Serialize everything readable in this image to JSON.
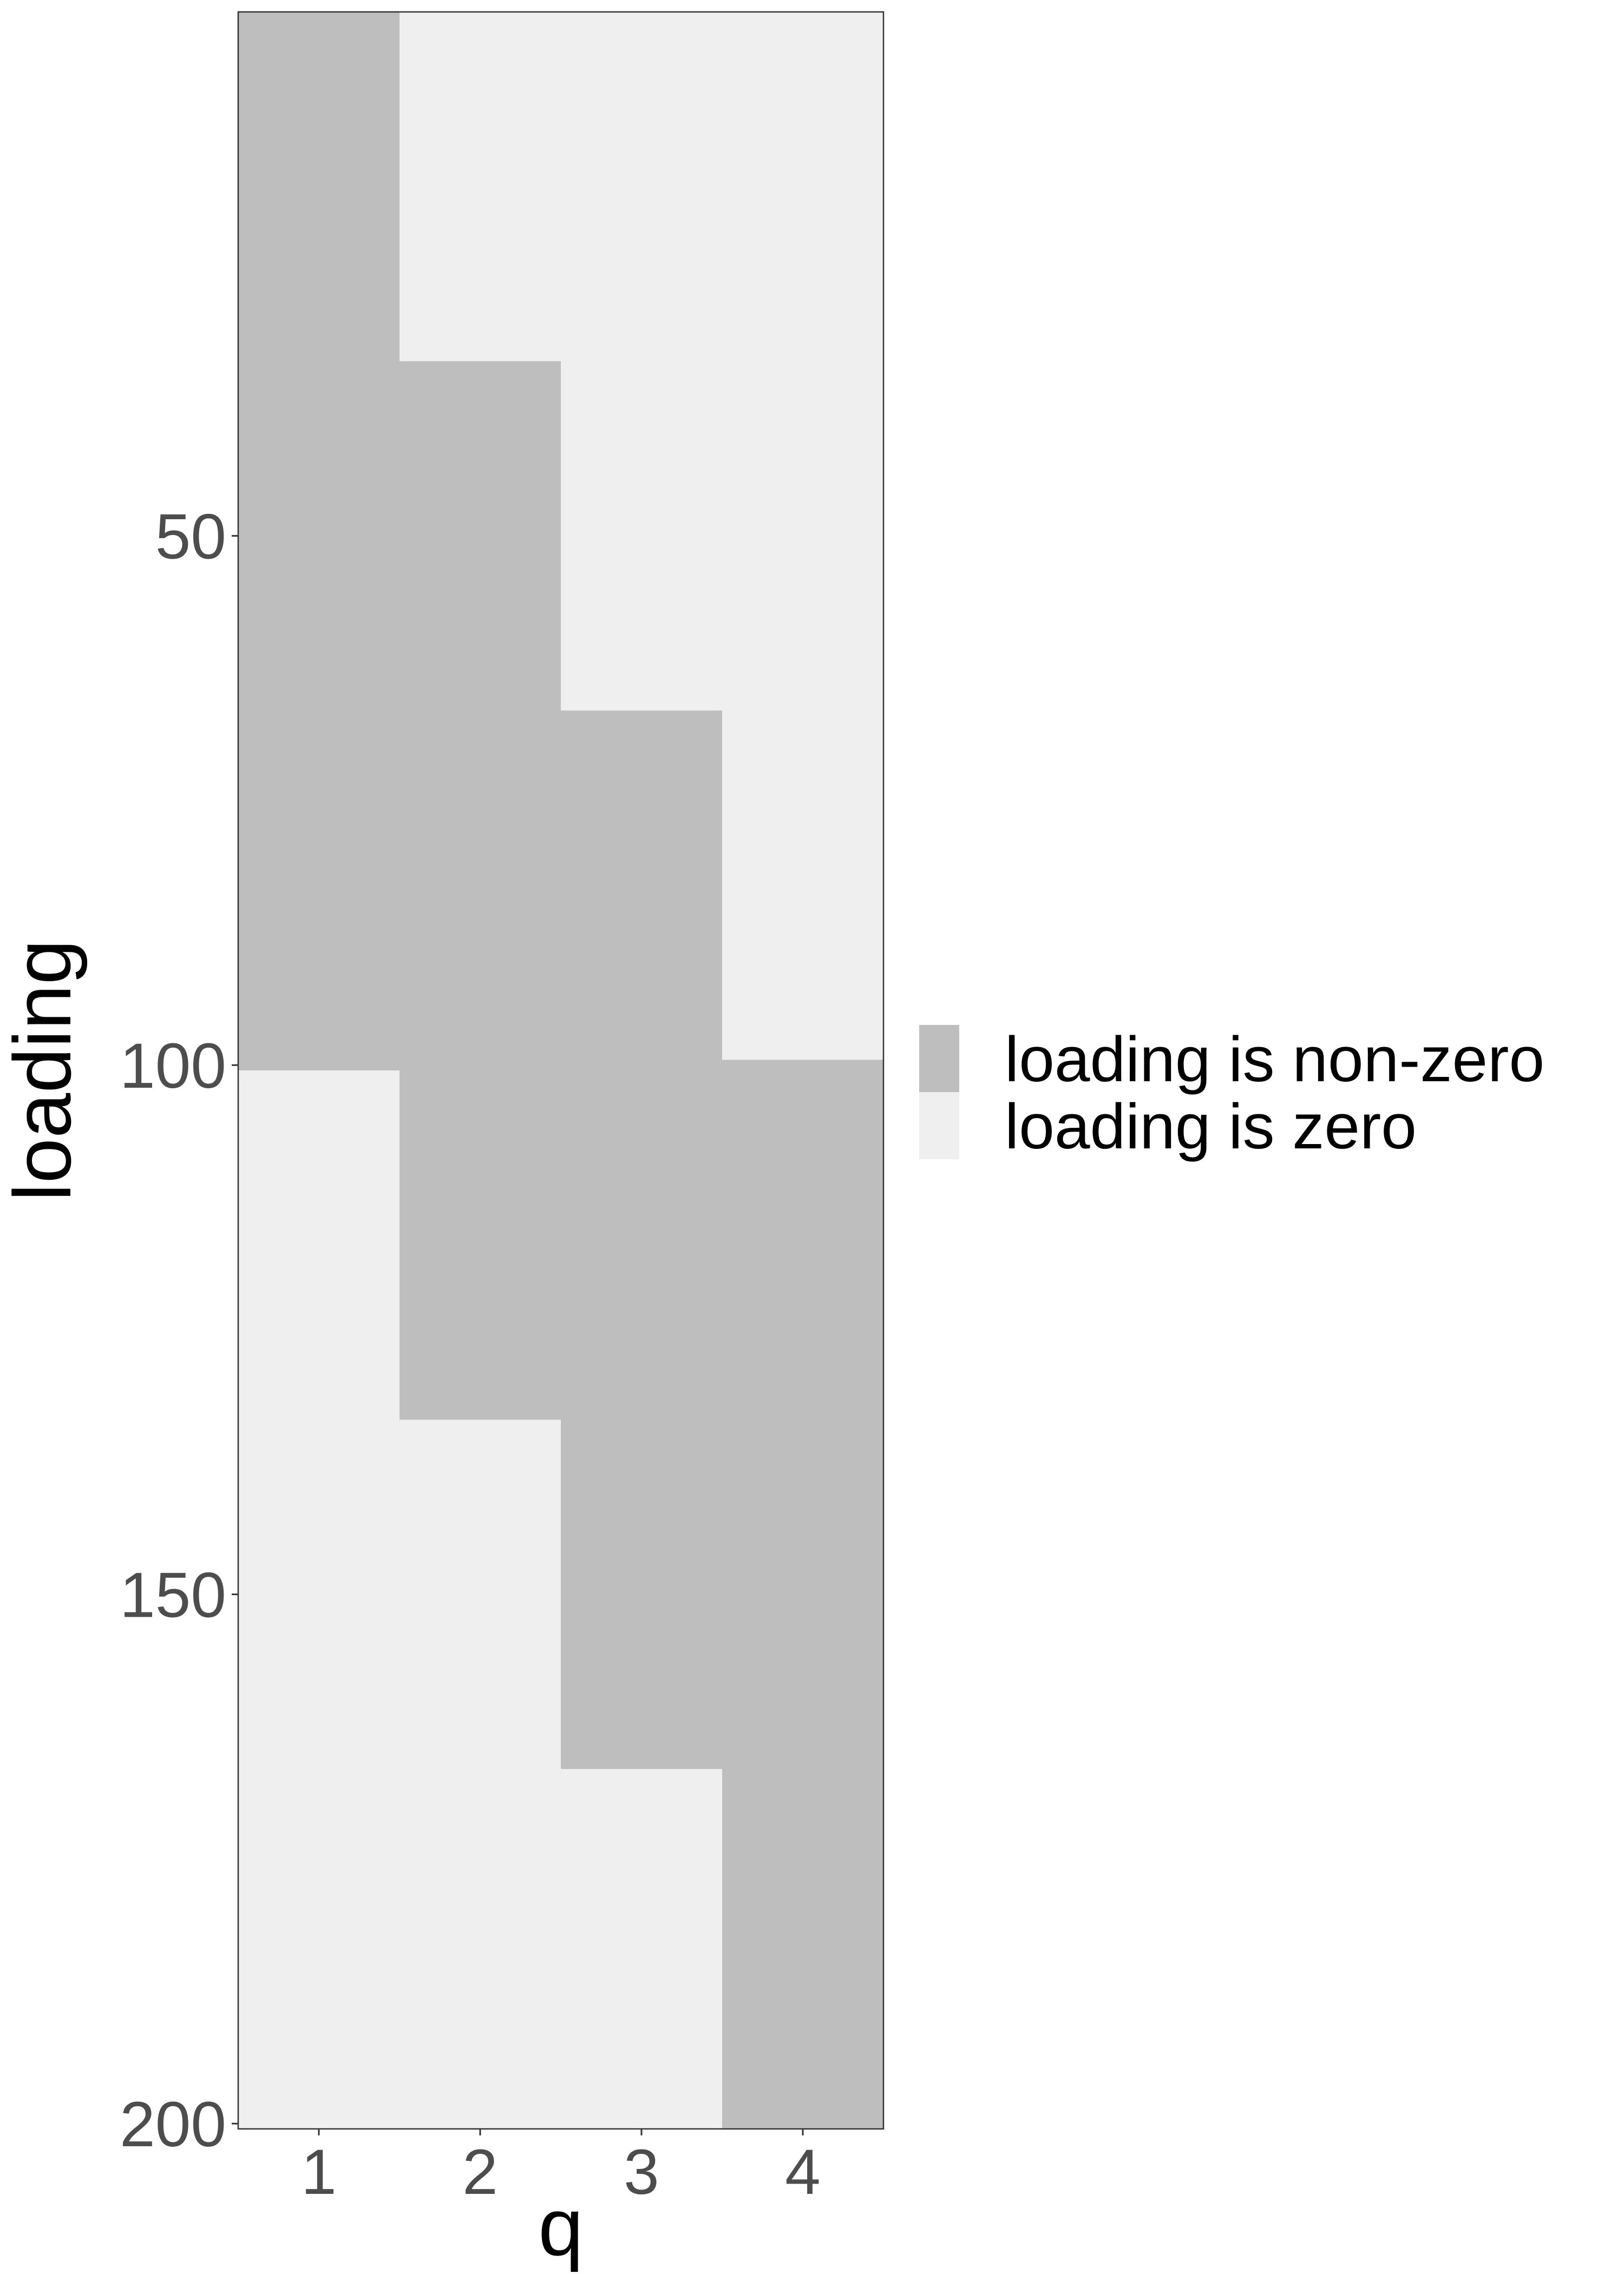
{
  "chart_data": {
    "type": "heatmap",
    "title": "",
    "xlabel": "q",
    "ylabel": "loading",
    "x_categories": [
      "1",
      "2",
      "3",
      "4"
    ],
    "y_ticks": [
      50,
      100,
      150,
      200
    ],
    "y_range": [
      1,
      200
    ],
    "y_reversed": true,
    "grid": false,
    "legend_position": "right",
    "legend": [
      {
        "key": "nonzero",
        "label": "loading is non-zero",
        "color": "#bebebe"
      },
      {
        "key": "zero",
        "label": "loading is zero",
        "color": "#efefef"
      }
    ],
    "nonzero_blocks": [
      {
        "q": "1",
        "from": 1,
        "to": 100
      },
      {
        "q": "2",
        "from": 34,
        "to": 133
      },
      {
        "q": "3",
        "from": 67,
        "to": 166
      },
      {
        "q": "4",
        "from": 100,
        "to": 200
      }
    ]
  }
}
